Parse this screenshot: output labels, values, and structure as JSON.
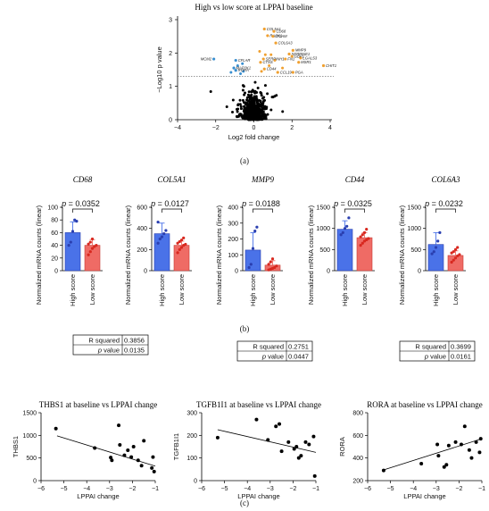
{
  "panel_labels": [
    "(a)",
    "(b)",
    "(c)"
  ],
  "chart_data": [
    {
      "type": "scatter",
      "id": "volcano",
      "title": "High vs low score at LPPAI baseline",
      "xlabel": "Log2 fold change",
      "ylabel": "−Log10 p value",
      "xlim": [
        -4,
        4
      ],
      "ylim": [
        0,
        3
      ],
      "xticks": [
        "−4",
        "−2",
        "0",
        "2",
        "4"
      ],
      "yticks": [
        "0",
        "1",
        "2",
        "3"
      ],
      "threshold_y": 1.3,
      "colors": {
        "up": "#f0a030",
        "down": "#3a8fd0",
        "ns": "#000000"
      },
      "labeled_genes": [
        {
          "name": "COL5A1",
          "x": 0.55,
          "y": 2.72,
          "group": "up"
        },
        {
          "name": "CD68",
          "x": 1.05,
          "y": 2.65,
          "group": "up"
        },
        {
          "name": "RACK1",
          "x": 0.72,
          "y": 2.52,
          "group": "up"
        },
        {
          "name": "ITGAM",
          "x": 1.0,
          "y": 2.5,
          "group": "up"
        },
        {
          "name": "COL6A3",
          "x": 1.15,
          "y": 2.3,
          "group": "up"
        },
        {
          "name": "MMP9",
          "x": 2.05,
          "y": 2.08,
          "group": "up"
        },
        {
          "name": "SERPINE1",
          "x": 1.85,
          "y": 1.97,
          "group": "up"
        },
        {
          "name": "LGALS3",
          "x": 2.45,
          "y": 1.85,
          "group": "up"
        },
        {
          "name": "GBP1",
          "x": 2.0,
          "y": 1.9,
          "group": "up"
        },
        {
          "name": "FN1",
          "x": 1.65,
          "y": 1.82,
          "group": "up"
        },
        {
          "name": "MSR1",
          "x": 2.35,
          "y": 1.72,
          "group": "up"
        },
        {
          "name": "SERPINH1",
          "x": 0.5,
          "y": 1.82,
          "group": "up"
        },
        {
          "name": "CTSS",
          "x": 0.35,
          "y": 1.72,
          "group": "up"
        },
        {
          "name": "CD44",
          "x": 0.55,
          "y": 1.52,
          "group": "up"
        },
        {
          "name": "CCL19",
          "x": 1.25,
          "y": 1.42,
          "group": "up"
        },
        {
          "name": "PGA",
          "x": 2.05,
          "y": 1.42,
          "group": "up"
        },
        {
          "name": "CHIT1",
          "x": 3.65,
          "y": 1.62,
          "group": "up"
        },
        {
          "name": "MCM2",
          "x": -2.1,
          "y": 1.82,
          "group": "down"
        },
        {
          "name": "CFLAR",
          "x": -0.95,
          "y": 1.78,
          "group": "down"
        },
        {
          "name": "MAP2K1",
          "x": -1.05,
          "y": 1.55,
          "group": "down"
        },
        {
          "name": "RORA",
          "x": -0.95,
          "y": 1.48,
          "group": "down"
        }
      ],
      "extra_sig_up": [
        [
          0.3,
          2.05
        ],
        [
          0.6,
          1.95
        ],
        [
          0.8,
          1.62
        ],
        [
          0.4,
          1.45
        ],
        [
          1.5,
          1.55
        ],
        [
          1.1,
          1.78
        ],
        [
          0.9,
          1.95
        ]
      ],
      "extra_sig_down": [
        [
          -0.7,
          1.38
        ],
        [
          -0.6,
          1.68
        ],
        [
          -1.2,
          1.42
        ],
        [
          -0.55,
          1.45
        ],
        [
          -0.85,
          1.62
        ]
      ]
    },
    {
      "type": "bar",
      "id": "cd68",
      "title": "CD68",
      "ylabel": "Normalized mRNA counts (linear)",
      "categories": [
        "High score",
        "Low score"
      ],
      "values": [
        60,
        40
      ],
      "errors": [
        17,
        9
      ],
      "ylim": [
        0,
        100
      ],
      "yticks": [
        "0",
        "20",
        "40",
        "60",
        "80",
        "100"
      ],
      "pvalue": "= 0.0352",
      "points": [
        [
          40,
          45,
          62,
          80,
          78
        ],
        [
          25,
          30,
          35,
          38,
          40,
          42,
          45,
          50
        ]
      ]
    },
    {
      "type": "bar",
      "id": "col5a1",
      "title": "COL5A1",
      "ylabel": "Normalized mRNA counts (linear)",
      "categories": [
        "High score",
        "Low score"
      ],
      "values": [
        350,
        240
      ],
      "errors": [
        100,
        40
      ],
      "ylim": [
        0,
        600
      ],
      "yticks": [
        "0",
        "200",
        "400",
        "600"
      ],
      "pvalue": "= 0.0127",
      "points": [
        [
          260,
          300,
          320,
          350,
          380,
          460
        ],
        [
          170,
          200,
          220,
          240,
          250,
          260,
          275,
          290,
          310
        ]
      ]
    },
    {
      "type": "bar",
      "id": "mmp9",
      "title": "MMP9",
      "ylabel": "Normalized mRNA counts (linear)",
      "categories": [
        "High score",
        "Low score"
      ],
      "values": [
        130,
        35
      ],
      "errors": [
        110,
        28
      ],
      "ylim": [
        0,
        400
      ],
      "yticks": [
        "0",
        "100",
        "200",
        "300",
        "400"
      ],
      "pvalue": "= 0.0188",
      "points": [
        [
          20,
          40,
          140,
          250,
          275
        ],
        [
          5,
          10,
          15,
          20,
          30,
          40,
          55,
          75
        ]
      ]
    },
    {
      "type": "bar",
      "id": "cd44",
      "title": "CD44",
      "ylabel": "Normalized mRNA counts (linear)",
      "categories": [
        "High score",
        "Low score"
      ],
      "values": [
        980,
        780
      ],
      "errors": [
        200,
        120
      ],
      "ylim": [
        0,
        1500
      ],
      "yticks": [
        "0",
        "500",
        "1000",
        "1500"
      ],
      "pvalue": "= 0.0325",
      "points": [
        [
          850,
          900,
          1000,
          1050,
          1250
        ],
        [
          600,
          650,
          700,
          730,
          760,
          800,
          850,
          900,
          980
        ]
      ]
    },
    {
      "type": "bar",
      "id": "col6a3",
      "title": "COL6A3",
      "ylabel": "Normalized mRNA counts (linear)",
      "categories": [
        "High score",
        "Low score"
      ],
      "values": [
        620,
        360
      ],
      "errors": [
        280,
        110
      ],
      "ylim": [
        0,
        1500
      ],
      "yticks": [
        "0",
        "500",
        "1000",
        "1500"
      ],
      "pvalue": "= 0.0232",
      "points": [
        [
          400,
          450,
          550,
          700,
          900
        ],
        [
          200,
          250,
          300,
          350,
          380,
          420,
          450,
          500,
          550
        ]
      ]
    },
    {
      "type": "scatter",
      "id": "thbs1",
      "title": "THBS1 at baseline vs LPPAI change",
      "xlabel": "LPPAI change",
      "ylabel": "THBS1",
      "xlim": [
        -6,
        -1
      ],
      "ylim": [
        0,
        1500
      ],
      "xticks": [
        "−6",
        "−5",
        "−4",
        "−3",
        "−2",
        "−1"
      ],
      "yticks": [
        "0",
        "500",
        "1000",
        "1500"
      ],
      "r_squared": "0.3856",
      "p_value": "0.0135",
      "fit": [
        [
          -5.3,
          990
        ],
        [
          -1.0,
          320
        ]
      ],
      "points": [
        [
          -5.35,
          1150
        ],
        [
          -3.65,
          720
        ],
        [
          -2.6,
          1220
        ],
        [
          -2.55,
          790
        ],
        [
          -2.9,
          450
        ],
        [
          -2.95,
          510
        ],
        [
          -2.35,
          560
        ],
        [
          -2.2,
          670
        ],
        [
          -2.05,
          520
        ],
        [
          -1.95,
          750
        ],
        [
          -1.75,
          450
        ],
        [
          -1.6,
          330
        ],
        [
          -1.5,
          880
        ],
        [
          -1.15,
          280
        ],
        [
          -1.05,
          200
        ],
        [
          -1.1,
          520
        ]
      ]
    },
    {
      "type": "scatter",
      "id": "tgfb1i1",
      "title": "TGFB1I1 at baseline vs LPPAI change",
      "xlabel": "LPPAI change",
      "ylabel": "TGFB1I1",
      "xlim": [
        -6,
        -1
      ],
      "ylim": [
        0,
        300
      ],
      "xticks": [
        "−6",
        "−5",
        "−4",
        "−3",
        "−2",
        "−1"
      ],
      "yticks": [
        "0",
        "100",
        "200",
        "300"
      ],
      "r_squared": "0.2751",
      "p_value": "0.0447",
      "fit": [
        [
          -5.3,
          225
        ],
        [
          -1.0,
          125
        ]
      ],
      "points": [
        [
          -5.3,
          190
        ],
        [
          -3.6,
          270
        ],
        [
          -3.1,
          180
        ],
        [
          -2.75,
          240
        ],
        [
          -2.6,
          250
        ],
        [
          -2.5,
          130
        ],
        [
          -2.2,
          170
        ],
        [
          -1.95,
          140
        ],
        [
          -1.85,
          150
        ],
        [
          -1.75,
          100
        ],
        [
          -1.65,
          110
        ],
        [
          -1.45,
          170
        ],
        [
          -1.3,
          160
        ],
        [
          -1.1,
          195
        ],
        [
          -1.05,
          20
        ]
      ]
    },
    {
      "type": "scatter",
      "id": "rora",
      "title": "RORA at baseline vs LPPAI change",
      "xlabel": "LPPAI change",
      "ylabel": "RORA",
      "xlim": [
        -6,
        -1
      ],
      "ylim": [
        200,
        800
      ],
      "xticks": [
        "−6",
        "−5",
        "−4",
        "−3",
        "−2",
        "−1"
      ],
      "yticks": [
        "200",
        "400",
        "600",
        "800"
      ],
      "r_squared": "0.3699",
      "p_value": "0.0161",
      "fit": [
        [
          -5.3,
          295
        ],
        [
          -1.0,
          570
        ]
      ],
      "points": [
        [
          -5.3,
          290
        ],
        [
          -3.65,
          350
        ],
        [
          -2.95,
          520
        ],
        [
          -2.9,
          420
        ],
        [
          -2.65,
          320
        ],
        [
          -2.55,
          340
        ],
        [
          -2.45,
          510
        ],
        [
          -2.15,
          540
        ],
        [
          -1.9,
          520
        ],
        [
          -1.75,
          680
        ],
        [
          -1.55,
          470
        ],
        [
          -1.45,
          400
        ],
        [
          -1.25,
          540
        ],
        [
          -1.05,
          570
        ],
        [
          -1.1,
          450
        ]
      ]
    }
  ]
}
